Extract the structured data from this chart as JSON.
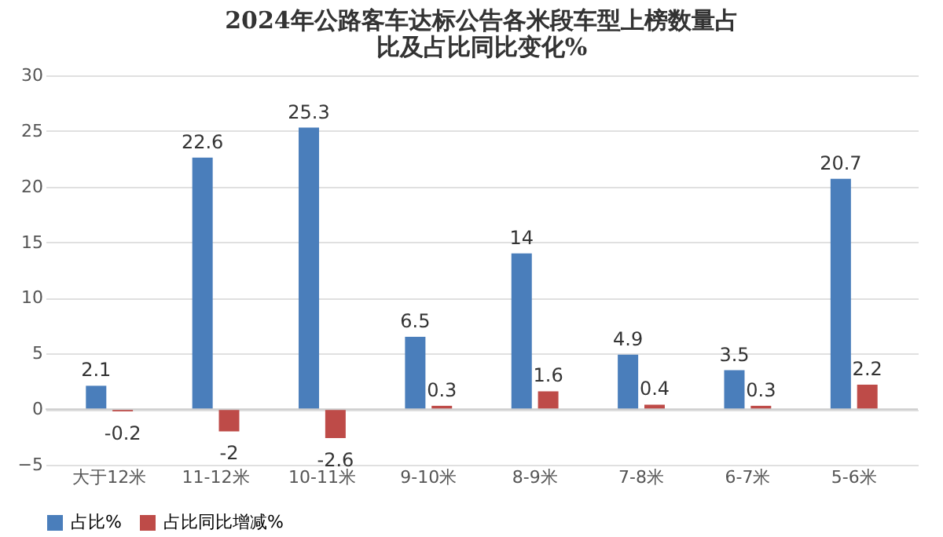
{
  "chart_data": {
    "type": "bar",
    "title": [
      "2024年公路客车达标公告各米段车型上榜数量占",
      "比及占比同比变化%"
    ],
    "categories": [
      "大于12米",
      "11-12米",
      "10-11米",
      "9-10米",
      "8-9米",
      "7-8米",
      "6-7米",
      "5-6米"
    ],
    "series": [
      {
        "name": "占比%",
        "color": "#4a7ebb",
        "values": [
          2.1,
          22.6,
          25.3,
          6.5,
          14,
          4.9,
          3.5,
          20.7
        ]
      },
      {
        "name": "占比同比增减%",
        "color": "#be4b48",
        "values": [
          -0.2,
          -2,
          -2.6,
          0.3,
          1.6,
          0.4,
          0.3,
          2.2
        ]
      }
    ],
    "ylim": [
      -5,
      30
    ],
    "yticks": [
      -5,
      0,
      5,
      10,
      15,
      20,
      25,
      30
    ],
    "grid": "y",
    "legend": "bottom",
    "data_labels": true
  }
}
